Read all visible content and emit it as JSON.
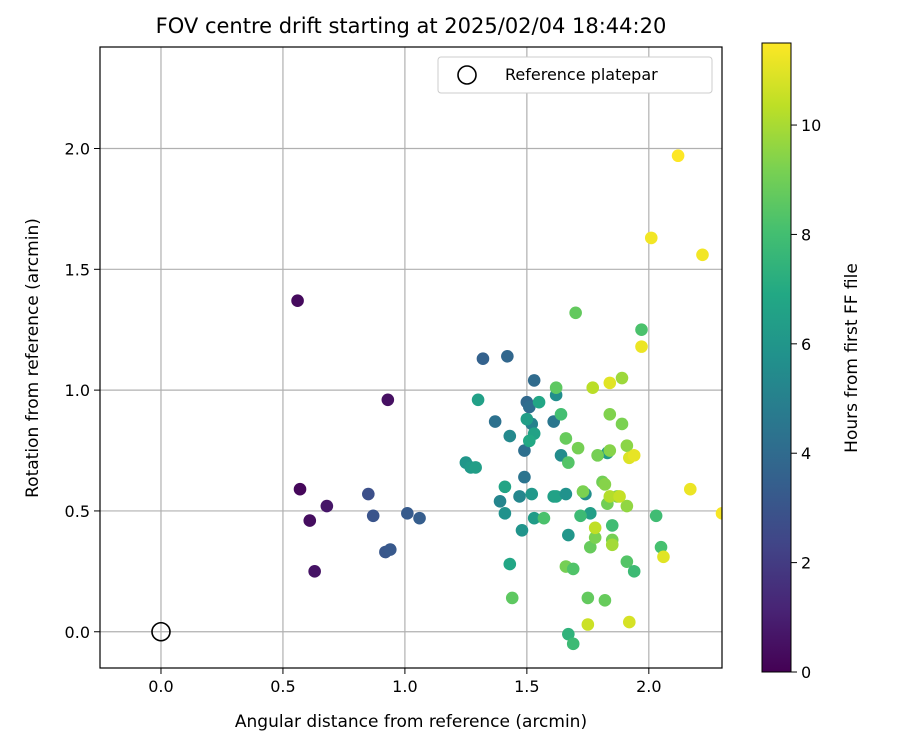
{
  "chart_data": {
    "type": "scatter",
    "title": "FOV centre drift starting at 2025/02/04 18:44:20",
    "xlabel": "Angular distance from reference (arcmin)",
    "ylabel": "Rotation from reference (arcmin)",
    "xlim": [
      -0.25,
      2.3
    ],
    "ylim": [
      -0.15,
      2.42
    ],
    "xticks": [
      "0.0",
      "0.5",
      "1.0",
      "1.5",
      "2.0"
    ],
    "yticks": [
      "0.0",
      "0.5",
      "1.0",
      "1.5",
      "2.0"
    ],
    "grid": true,
    "legend": {
      "placement": "top-right",
      "entries": [
        "Reference platepar"
      ]
    },
    "reference_point": {
      "x": 0.0,
      "y": 0.0
    },
    "colorbar": {
      "label": "Hours from first FF file",
      "colormap": "viridis",
      "range": [
        0,
        11.5
      ],
      "ticks": [
        "0",
        "2",
        "4",
        "6",
        "8",
        "10"
      ]
    },
    "points": [
      {
        "x": 0.56,
        "y": 1.37,
        "c": 0.3
      },
      {
        "x": 0.57,
        "y": 0.59,
        "c": 0.2
      },
      {
        "x": 0.61,
        "y": 0.46,
        "c": 0.4
      },
      {
        "x": 0.63,
        "y": 0.25,
        "c": 0.6
      },
      {
        "x": 0.68,
        "y": 0.52,
        "c": 0.7
      },
      {
        "x": 0.93,
        "y": 0.96,
        "c": 0.5
      },
      {
        "x": 0.85,
        "y": 0.57,
        "c": 2.8
      },
      {
        "x": 0.87,
        "y": 0.48,
        "c": 3.0
      },
      {
        "x": 0.92,
        "y": 0.33,
        "c": 3.1
      },
      {
        "x": 0.94,
        "y": 0.34,
        "c": 3.2
      },
      {
        "x": 1.01,
        "y": 0.49,
        "c": 3.3
      },
      {
        "x": 1.06,
        "y": 0.47,
        "c": 3.4
      },
      {
        "x": 1.32,
        "y": 1.13,
        "c": 3.6
      },
      {
        "x": 1.42,
        "y": 1.14,
        "c": 3.8
      },
      {
        "x": 1.53,
        "y": 1.04,
        "c": 4.0
      },
      {
        "x": 1.5,
        "y": 0.95,
        "c": 3.9
      },
      {
        "x": 1.51,
        "y": 0.93,
        "c": 4.1
      },
      {
        "x": 1.37,
        "y": 0.87,
        "c": 4.3
      },
      {
        "x": 1.49,
        "y": 0.75,
        "c": 4.2
      },
      {
        "x": 1.49,
        "y": 0.64,
        "c": 4.4
      },
      {
        "x": 1.61,
        "y": 0.87,
        "c": 4.5
      },
      {
        "x": 1.52,
        "y": 0.86,
        "c": 5.0
      },
      {
        "x": 1.43,
        "y": 0.81,
        "c": 5.4
      },
      {
        "x": 1.62,
        "y": 0.98,
        "c": 5.6
      },
      {
        "x": 1.3,
        "y": 0.96,
        "c": 6.5
      },
      {
        "x": 1.5,
        "y": 0.88,
        "c": 6.4
      },
      {
        "x": 1.53,
        "y": 0.82,
        "c": 6.6
      },
      {
        "x": 1.55,
        "y": 0.95,
        "c": 6.8
      },
      {
        "x": 1.25,
        "y": 0.7,
        "c": 6.0
      },
      {
        "x": 1.27,
        "y": 0.68,
        "c": 6.2
      },
      {
        "x": 1.29,
        "y": 0.68,
        "c": 6.4
      },
      {
        "x": 1.39,
        "y": 0.54,
        "c": 5.2
      },
      {
        "x": 1.41,
        "y": 0.6,
        "c": 6.7
      },
      {
        "x": 1.47,
        "y": 0.56,
        "c": 5.3
      },
      {
        "x": 1.41,
        "y": 0.49,
        "c": 5.8
      },
      {
        "x": 1.48,
        "y": 0.42,
        "c": 5.9
      },
      {
        "x": 1.52,
        "y": 0.57,
        "c": 6.1
      },
      {
        "x": 1.53,
        "y": 0.47,
        "c": 6.3
      },
      {
        "x": 1.51,
        "y": 0.79,
        "c": 6.9
      },
      {
        "x": 1.61,
        "y": 0.56,
        "c": 6.5
      },
      {
        "x": 1.62,
        "y": 0.56,
        "c": 6.6
      },
      {
        "x": 1.64,
        "y": 0.73,
        "c": 5.5
      },
      {
        "x": 1.66,
        "y": 0.57,
        "c": 5.8
      },
      {
        "x": 1.67,
        "y": 0.4,
        "c": 6.0
      },
      {
        "x": 1.74,
        "y": 0.57,
        "c": 5.6
      },
      {
        "x": 1.76,
        "y": 0.49,
        "c": 6.4
      },
      {
        "x": 1.83,
        "y": 0.74,
        "c": 6.2
      },
      {
        "x": 1.43,
        "y": 0.28,
        "c": 6.8
      },
      {
        "x": 1.57,
        "y": 0.47,
        "c": 8.2
      },
      {
        "x": 1.62,
        "y": 1.01,
        "c": 8.6
      },
      {
        "x": 1.64,
        "y": 0.9,
        "c": 8.0
      },
      {
        "x": 1.66,
        "y": 0.8,
        "c": 8.8
      },
      {
        "x": 1.67,
        "y": 0.7,
        "c": 8.4
      },
      {
        "x": 1.7,
        "y": 1.32,
        "c": 8.7
      },
      {
        "x": 1.71,
        "y": 0.76,
        "c": 9.1
      },
      {
        "x": 1.72,
        "y": 0.48,
        "c": 7.8
      },
      {
        "x": 1.73,
        "y": 0.58,
        "c": 9.2
      },
      {
        "x": 1.75,
        "y": 0.14,
        "c": 8.7
      },
      {
        "x": 1.76,
        "y": 0.35,
        "c": 8.8
      },
      {
        "x": 1.78,
        "y": 0.39,
        "c": 9.2
      },
      {
        "x": 1.79,
        "y": 0.73,
        "c": 9.1
      },
      {
        "x": 1.81,
        "y": 0.62,
        "c": 9.0
      },
      {
        "x": 1.82,
        "y": 0.61,
        "c": 9.4
      },
      {
        "x": 1.82,
        "y": 0.13,
        "c": 8.8
      },
      {
        "x": 1.83,
        "y": 0.53,
        "c": 9.0
      },
      {
        "x": 1.84,
        "y": 0.9,
        "c": 9.3
      },
      {
        "x": 1.84,
        "y": 0.75,
        "c": 9.4
      },
      {
        "x": 1.85,
        "y": 0.44,
        "c": 7.9
      },
      {
        "x": 1.85,
        "y": 0.38,
        "c": 9.1
      },
      {
        "x": 1.85,
        "y": 0.36,
        "c": 9.9
      },
      {
        "x": 1.87,
        "y": 0.56,
        "c": 9.4
      },
      {
        "x": 1.89,
        "y": 0.86,
        "c": 9.2
      },
      {
        "x": 1.89,
        "y": 1.05,
        "c": 9.8
      },
      {
        "x": 1.91,
        "y": 0.77,
        "c": 9.5
      },
      {
        "x": 1.91,
        "y": 0.52,
        "c": 9.6
      },
      {
        "x": 1.91,
        "y": 0.29,
        "c": 8.4
      },
      {
        "x": 1.94,
        "y": 0.25,
        "c": 7.8
      },
      {
        "x": 1.97,
        "y": 1.25,
        "c": 8.2
      },
      {
        "x": 2.03,
        "y": 0.48,
        "c": 7.9
      },
      {
        "x": 2.05,
        "y": 0.35,
        "c": 8.1
      },
      {
        "x": 1.44,
        "y": 0.14,
        "c": 8.6
      },
      {
        "x": 1.66,
        "y": 0.27,
        "c": 9.1
      },
      {
        "x": 1.69,
        "y": 0.26,
        "c": 8.3
      },
      {
        "x": 1.67,
        "y": -0.01,
        "c": 7.4
      },
      {
        "x": 1.69,
        "y": -0.05,
        "c": 7.8
      },
      {
        "x": 1.75,
        "y": 0.03,
        "c": 10.6
      },
      {
        "x": 1.77,
        "y": 1.01,
        "c": 10.3
      },
      {
        "x": 1.78,
        "y": 0.43,
        "c": 10.4
      },
      {
        "x": 1.84,
        "y": 1.03,
        "c": 11.0
      },
      {
        "x": 1.84,
        "y": 0.56,
        "c": 10.2
      },
      {
        "x": 1.88,
        "y": 0.56,
        "c": 10.5
      },
      {
        "x": 1.92,
        "y": 0.72,
        "c": 10.9
      },
      {
        "x": 1.92,
        "y": 0.04,
        "c": 10.8
      },
      {
        "x": 1.94,
        "y": 0.73,
        "c": 11.1
      },
      {
        "x": 1.97,
        "y": 1.18,
        "c": 11.2
      },
      {
        "x": 2.01,
        "y": 1.63,
        "c": 11.3
      },
      {
        "x": 2.06,
        "y": 0.31,
        "c": 11.0
      },
      {
        "x": 2.12,
        "y": 1.97,
        "c": 11.5
      },
      {
        "x": 2.17,
        "y": 0.59,
        "c": 11.2
      },
      {
        "x": 2.22,
        "y": 1.56,
        "c": 11.3
      },
      {
        "x": 2.3,
        "y": 0.49,
        "c": 11.4
      }
    ]
  }
}
